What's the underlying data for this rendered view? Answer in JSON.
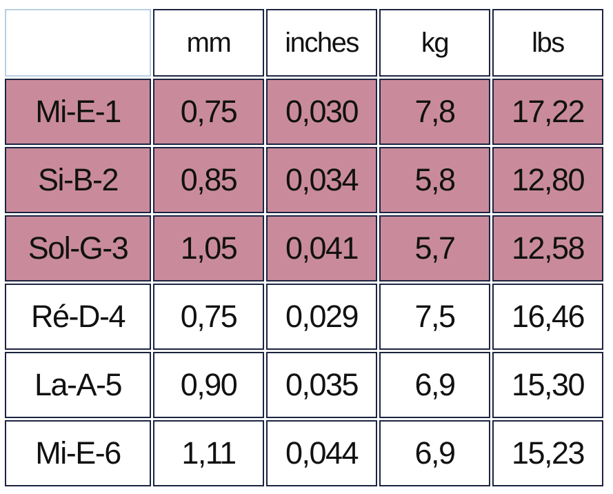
{
  "table": {
    "columns": [
      "mm",
      "inches",
      "kg",
      "lbs"
    ],
    "rows": [
      {
        "cells": [
          "Mi-E-1",
          "0,75",
          "0,030",
          "7,8",
          "17,22"
        ],
        "color": "#c98b9b"
      },
      {
        "cells": [
          "Si-B-2",
          "0,85",
          "0,034",
          "5,8",
          "12,80"
        ],
        "color": "#c98b9b"
      },
      {
        "cells": [
          "Sol-G-3",
          "1,05",
          "0,041",
          "5,7",
          "12,58"
        ],
        "color": "#c98b9b"
      },
      {
        "cells": [
          "Ré-D-4",
          "0,75",
          "0,029",
          "7,5",
          "16,46"
        ],
        "color": "#ffffff"
      },
      {
        "cells": [
          "La-A-5",
          "0,90",
          "0,035",
          "6,9",
          "15,30"
        ],
        "color": "#ffffff"
      },
      {
        "cells": [
          "Mi-E-6",
          "1,11",
          "0,044",
          "6,9",
          "15,23"
        ],
        "color": "#ffffff"
      }
    ]
  }
}
